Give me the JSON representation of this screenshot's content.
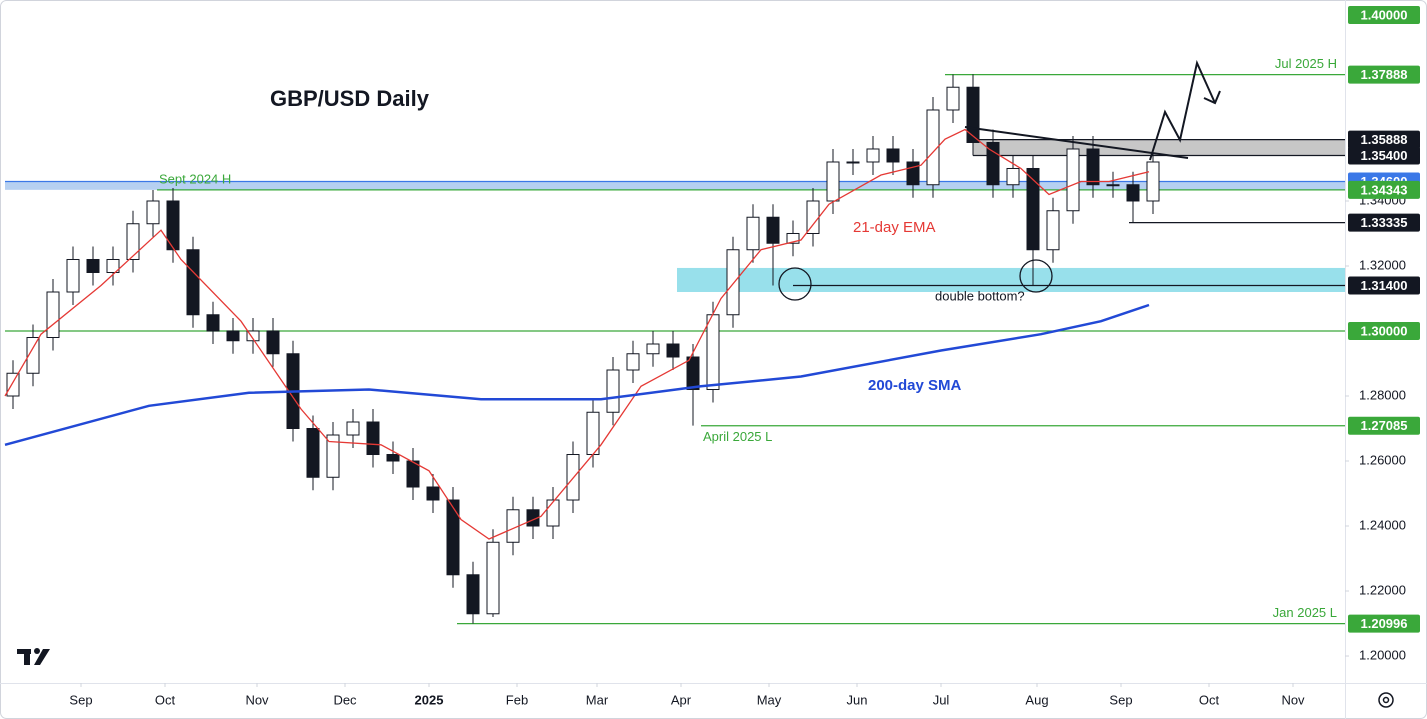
{
  "chart_data": {
    "type": "candlestick",
    "title": "GBP/USD Daily",
    "xlim": [
      0,
      335
    ],
    "ylim": [
      1.1917,
      1.4003
    ],
    "xticks": [
      {
        "value": 19,
        "label": "Sep"
      },
      {
        "value": 40,
        "label": "Oct"
      },
      {
        "value": 63,
        "label": "Nov"
      },
      {
        "value": 85,
        "label": "Dec"
      },
      {
        "value": 106,
        "label": "2025"
      },
      {
        "value": 128,
        "label": "Feb"
      },
      {
        "value": 148,
        "label": "Mar"
      },
      {
        "value": 169,
        "label": "Apr"
      },
      {
        "value": 191,
        "label": "May"
      },
      {
        "value": 213,
        "label": "Jun"
      },
      {
        "value": 234,
        "label": "Jul"
      },
      {
        "value": 258,
        "label": "Aug"
      },
      {
        "value": 279,
        "label": "Sep"
      },
      {
        "value": 301,
        "label": "Oct"
      },
      {
        "value": 322,
        "label": "Nov"
      }
    ],
    "yticks": [
      {
        "value": 1.2,
        "label": "1.20000"
      },
      {
        "value": 1.22,
        "label": "1.22000"
      },
      {
        "value": 1.24,
        "label": "1.24000"
      },
      {
        "value": 1.26,
        "label": "1.26000"
      },
      {
        "value": 1.28,
        "label": "1.28000"
      },
      {
        "value": 1.32,
        "label": "1.32000"
      },
      {
        "value": 1.34,
        "label": "1.34000"
      }
    ],
    "ohlc": {
      "x": [
        2,
        7,
        12,
        17,
        22,
        27,
        32,
        37,
        42,
        47,
        52,
        57,
        62,
        67,
        72,
        77,
        82,
        87,
        92,
        97,
        102,
        107,
        112,
        117,
        122,
        127,
        132,
        137,
        142,
        147,
        152,
        157,
        162,
        167,
        172,
        177,
        182,
        187,
        192,
        197,
        202,
        207,
        212,
        217,
        222,
        227,
        232,
        237,
        242,
        247,
        252,
        257,
        262,
        267,
        272,
        277,
        282,
        287
      ],
      "open": [
        1.28,
        1.287,
        1.298,
        1.312,
        1.322,
        1.318,
        1.322,
        1.333,
        1.34,
        1.325,
        1.305,
        1.3,
        1.297,
        1.3,
        1.293,
        1.27,
        1.255,
        1.268,
        1.272,
        1.262,
        1.26,
        1.252,
        1.248,
        1.225,
        1.213,
        1.235,
        1.245,
        1.24,
        1.248,
        1.262,
        1.275,
        1.288,
        1.293,
        1.296,
        1.292,
        1.282,
        1.305,
        1.325,
        1.335,
        1.327,
        1.33,
        1.34,
        1.352,
        1.352,
        1.356,
        1.352,
        1.345,
        1.368,
        1.375,
        1.358,
        1.345,
        1.35,
        1.325,
        1.337,
        1.356,
        1.345,
        1.345,
        1.34
      ],
      "high": [
        1.291,
        1.302,
        1.316,
        1.326,
        1.326,
        1.326,
        1.337,
        1.3434,
        1.344,
        1.329,
        1.309,
        1.304,
        1.304,
        1.304,
        1.297,
        1.274,
        1.272,
        1.276,
        1.276,
        1.266,
        1.264,
        1.256,
        1.252,
        1.229,
        1.239,
        1.249,
        1.249,
        1.252,
        1.266,
        1.279,
        1.292,
        1.297,
        1.3,
        1.3,
        1.296,
        1.309,
        1.329,
        1.339,
        1.339,
        1.334,
        1.344,
        1.356,
        1.356,
        1.36,
        1.36,
        1.356,
        1.372,
        1.3789,
        1.379,
        1.362,
        1.354,
        1.354,
        1.341,
        1.36,
        1.36,
        1.349,
        1.349,
        1.356
      ],
      "low": [
        1.276,
        1.283,
        1.294,
        1.308,
        1.314,
        1.314,
        1.318,
        1.329,
        1.321,
        1.301,
        1.296,
        1.293,
        1.293,
        1.289,
        1.266,
        1.251,
        1.251,
        1.264,
        1.258,
        1.256,
        1.248,
        1.244,
        1.221,
        1.21,
        1.212,
        1.231,
        1.236,
        1.236,
        1.244,
        1.258,
        1.271,
        1.284,
        1.289,
        1.288,
        1.2709,
        1.278,
        1.301,
        1.321,
        1.314,
        1.323,
        1.326,
        1.336,
        1.348,
        1.348,
        1.348,
        1.341,
        1.341,
        1.364,
        1.354,
        1.341,
        1.341,
        1.314,
        1.321,
        1.333,
        1.341,
        1.341,
        1.3333,
        1.336
      ],
      "close": [
        1.287,
        1.298,
        1.312,
        1.322,
        1.318,
        1.322,
        1.333,
        1.34,
        1.325,
        1.305,
        1.3,
        1.297,
        1.3,
        1.293,
        1.27,
        1.255,
        1.268,
        1.272,
        1.262,
        1.26,
        1.252,
        1.248,
        1.225,
        1.213,
        1.235,
        1.245,
        1.24,
        1.248,
        1.262,
        1.275,
        1.288,
        1.293,
        1.296,
        1.292,
        1.282,
        1.305,
        1.325,
        1.335,
        1.327,
        1.33,
        1.34,
        1.352,
        1.352,
        1.356,
        1.352,
        1.345,
        1.368,
        1.375,
        1.358,
        1.345,
        1.35,
        1.325,
        1.337,
        1.356,
        1.345,
        1.345,
        1.34,
        1.352
      ]
    },
    "series": [
      {
        "name": "21-day EMA",
        "color": "#e53935",
        "x": [
          0,
          9,
          24,
          39,
          44,
          59,
          74,
          81,
          94,
          106,
          114,
          121,
          134,
          149,
          159,
          171,
          179,
          189,
          199,
          206,
          219,
          229,
          235,
          240,
          246,
          254,
          261,
          269,
          276,
          286
        ],
        "values": [
          1.28,
          1.299,
          1.314,
          1.331,
          1.322,
          1.303,
          1.276,
          1.266,
          1.265,
          1.257,
          1.242,
          1.236,
          1.243,
          1.265,
          1.283,
          1.291,
          1.31,
          1.325,
          1.328,
          1.339,
          1.348,
          1.351,
          1.359,
          1.362,
          1.356,
          1.35,
          1.342,
          1.346,
          1.346,
          1.349
        ]
      },
      {
        "name": "200-day SMA",
        "color": "#2249d6",
        "x": [
          0,
          36,
          61,
          91,
          119,
          149,
          174,
          199,
          234,
          259,
          274,
          286
        ],
        "values": [
          1.265,
          1.277,
          1.281,
          1.282,
          1.279,
          1.279,
          1.283,
          1.286,
          1.294,
          1.299,
          1.303,
          1.308
        ]
      }
    ],
    "zones": [
      {
        "from": 1.354,
        "to": 1.35888,
        "start": 242,
        "color": "#bdbdbd"
      },
      {
        "from": 1.34343,
        "to": 1.346,
        "start": 0,
        "color": "#a9c8ee"
      },
      {
        "from": 1.312,
        "to": 1.3194,
        "start": 168,
        "color": "#86dbe8"
      }
    ],
    "levels": [
      {
        "value": 1.4,
        "label": "1.40000",
        "color": "#3aa83a",
        "start": null
      },
      {
        "value": 1.37888,
        "label": "1.37888",
        "color": "#3aa83a",
        "start": 235,
        "note": "Jul 2025 H",
        "note_side": "above-right"
      },
      {
        "value": 1.35888,
        "label": "1.35888",
        "color": "#131722",
        "start": 242
      },
      {
        "value": 1.354,
        "label": "1.35400",
        "color": "#131722",
        "start": 242
      },
      {
        "value": 1.346,
        "label": "1.34600",
        "color": "#3b78e7",
        "start": 0
      },
      {
        "value": 1.34343,
        "label": "1.34343",
        "color": "#3aa83a",
        "start": 38,
        "note": "Sept 2024 H",
        "note_side": "above-left"
      },
      {
        "value": 1.33335,
        "label": "1.33335",
        "color": "#131722",
        "start": 281
      },
      {
        "value": 1.314,
        "label": "1.31400",
        "color": "#131722",
        "start": 197
      },
      {
        "value": 1.3,
        "label": "1.30000",
        "color": "#3aa83a",
        "start": 0
      },
      {
        "value": 1.27085,
        "label": "1.27085",
        "color": "#3aa83a",
        "start": 174,
        "note": "April 2025 L",
        "note_side": "below-left"
      },
      {
        "value": 1.20996,
        "label": "1.20996",
        "color": "#3aa83a",
        "start": 113,
        "note": "Jan 2025 L",
        "note_side": "above-right"
      }
    ],
    "annotation": "double bottom?"
  }
}
